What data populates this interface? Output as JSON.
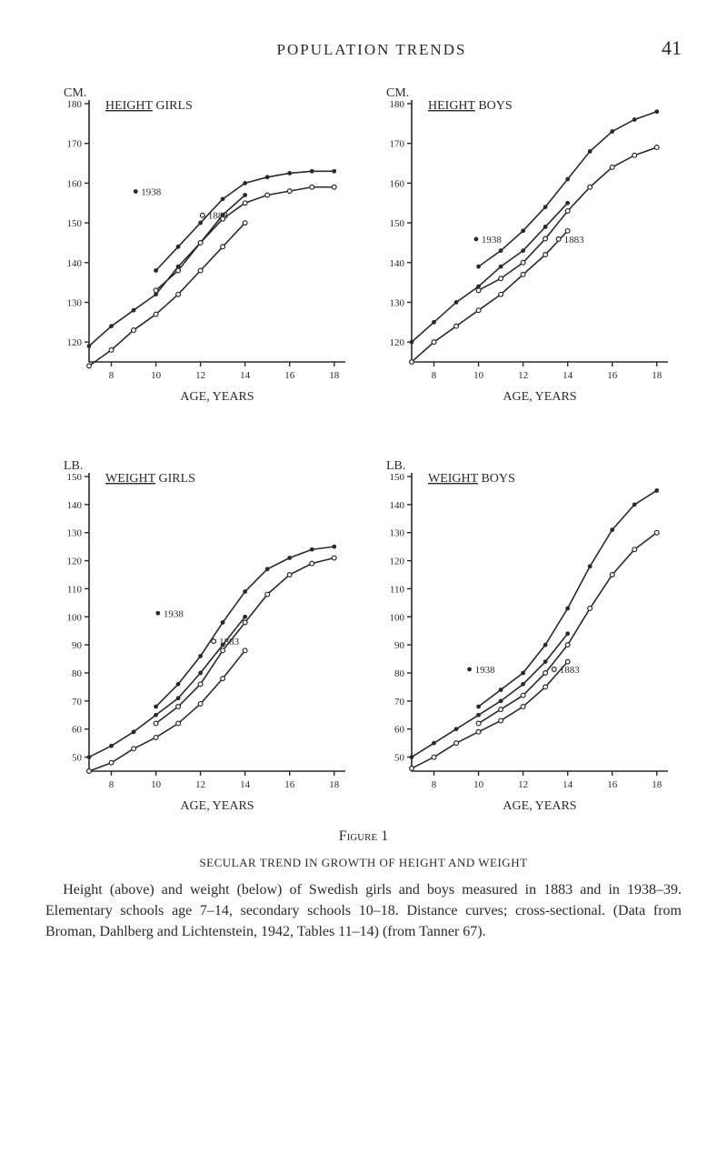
{
  "header": {
    "running_title": "POPULATION TRENDS",
    "page_number": "41"
  },
  "figure_label": "Figure 1",
  "caption": {
    "title": "SECULAR TREND IN GROWTH OF HEIGHT AND WEIGHT",
    "body": "Height (above) and weight (below) of Swedish girls and boys measured in 1883 and in 1938–39. Elementary schools age 7–14, secondary schools 10–18. Distance curves; cross-sectional. (Data from Broman, Dahlberg and Lichtenstein, 1942, Tables 11–14) (from Tanner 67)."
  },
  "charts": {
    "height_girls": {
      "type": "line",
      "unit_label": "CM.",
      "title": "HEIGHT  GIRLS",
      "x_label": "AGE, YEARS",
      "x_ticks": [
        8,
        10,
        12,
        14,
        16,
        18
      ],
      "y_ticks": [
        120,
        130,
        140,
        150,
        160,
        170,
        180
      ],
      "xlim": [
        7,
        18.5
      ],
      "ylim": [
        115,
        180
      ],
      "series": {
        "elem_1938": {
          "label": "1938",
          "label_pos": {
            "x": 9.5,
            "y": 157
          },
          "points": [
            [
              7,
              119
            ],
            [
              8,
              124
            ],
            [
              9,
              128
            ],
            [
              10,
              132
            ],
            [
              11,
              139
            ],
            [
              12,
              145
            ],
            [
              13,
              152
            ],
            [
              14,
              157
            ]
          ],
          "marker": "dot",
          "color": "#2a2a2a"
        },
        "elem_1883": {
          "label": "1883",
          "label_pos": {
            "x": 12.5,
            "y": 151
          },
          "label_marker": "circle",
          "points": [
            [
              7,
              114
            ],
            [
              8,
              118
            ],
            [
              9,
              123
            ],
            [
              10,
              127
            ],
            [
              11,
              132
            ],
            [
              12,
              138
            ],
            [
              13,
              144
            ],
            [
              14,
              150
            ]
          ],
          "marker": "circle",
          "color": "#2a2a2a"
        },
        "sec_1938": {
          "points": [
            [
              10,
              138
            ],
            [
              11,
              144
            ],
            [
              12,
              150
            ],
            [
              13,
              156
            ],
            [
              14,
              160
            ],
            [
              15,
              161.5
            ],
            [
              16,
              162.5
            ],
            [
              17,
              163
            ],
            [
              18,
              163
            ]
          ],
          "marker": "dot",
          "color": "#2a2a2a"
        },
        "sec_1883": {
          "points": [
            [
              10,
              133
            ],
            [
              11,
              138
            ],
            [
              12,
              145
            ],
            [
              13,
              151
            ],
            [
              14,
              155
            ],
            [
              15,
              157
            ],
            [
              16,
              158
            ],
            [
              17,
              159
            ],
            [
              18,
              159
            ]
          ],
          "marker": "circle",
          "color": "#2a2a2a"
        }
      }
    },
    "height_boys": {
      "type": "line",
      "unit_label": "CM.",
      "title": "HEIGHT  BOYS",
      "x_label": "AGE, YEARS",
      "x_ticks": [
        8,
        10,
        12,
        14,
        16,
        18
      ],
      "y_ticks": [
        120,
        130,
        140,
        150,
        160,
        170,
        180
      ],
      "xlim": [
        7,
        18.5
      ],
      "ylim": [
        115,
        180
      ],
      "series": {
        "elem_1938": {
          "label": "1938",
          "label_pos": {
            "x": 10.3,
            "y": 145
          },
          "points": [
            [
              7,
              120
            ],
            [
              8,
              125
            ],
            [
              9,
              130
            ],
            [
              10,
              134
            ],
            [
              11,
              139
            ],
            [
              12,
              143
            ],
            [
              13,
              149
            ],
            [
              14,
              155
            ]
          ],
          "marker": "dot",
          "color": "#2a2a2a"
        },
        "elem_1883": {
          "label": "1883",
          "label_pos": {
            "x": 14,
            "y": 145
          },
          "label_marker": "circle",
          "points": [
            [
              7,
              115
            ],
            [
              8,
              120
            ],
            [
              9,
              124
            ],
            [
              10,
              128
            ],
            [
              11,
              132
            ],
            [
              12,
              137
            ],
            [
              13,
              142
            ],
            [
              14,
              148
            ]
          ],
          "marker": "circle",
          "color": "#2a2a2a"
        },
        "sec_1938": {
          "points": [
            [
              10,
              139
            ],
            [
              11,
              143
            ],
            [
              12,
              148
            ],
            [
              13,
              154
            ],
            [
              14,
              161
            ],
            [
              15,
              168
            ],
            [
              16,
              173
            ],
            [
              17,
              176
            ],
            [
              18,
              178
            ]
          ],
          "marker": "dot",
          "color": "#2a2a2a"
        },
        "sec_1883": {
          "points": [
            [
              10,
              133
            ],
            [
              11,
              136
            ],
            [
              12,
              140
            ],
            [
              13,
              146
            ],
            [
              14,
              153
            ],
            [
              15,
              159
            ],
            [
              16,
              164
            ],
            [
              17,
              167
            ],
            [
              18,
              169
            ]
          ],
          "marker": "circle",
          "color": "#2a2a2a"
        }
      }
    },
    "weight_girls": {
      "type": "line",
      "unit_label": "LB.",
      "title": "WEIGHT  GIRLS",
      "x_label": "AGE, YEARS",
      "x_ticks": [
        8,
        10,
        12,
        14,
        16,
        18
      ],
      "y_ticks": [
        50,
        60,
        70,
        80,
        90,
        100,
        110,
        120,
        130,
        140,
        150
      ],
      "xlim": [
        7,
        18.5
      ],
      "ylim": [
        45,
        150
      ],
      "series": {
        "elem_1938": {
          "label": "1938",
          "label_pos": {
            "x": 10.5,
            "y": 100
          },
          "points": [
            [
              7,
              50
            ],
            [
              8,
              54
            ],
            [
              9,
              59
            ],
            [
              10,
              65
            ],
            [
              11,
              71
            ],
            [
              12,
              80
            ],
            [
              13,
              90
            ],
            [
              14,
              100
            ]
          ],
          "marker": "dot",
          "color": "#2a2a2a"
        },
        "elem_1883": {
          "label": "1883",
          "label_pos": {
            "x": 13,
            "y": 90
          },
          "label_marker": "circle",
          "points": [
            [
              7,
              45
            ],
            [
              8,
              48
            ],
            [
              9,
              53
            ],
            [
              10,
              57
            ],
            [
              11,
              62
            ],
            [
              12,
              69
            ],
            [
              13,
              78
            ],
            [
              14,
              88
            ]
          ],
          "marker": "circle",
          "color": "#2a2a2a"
        },
        "sec_1938": {
          "points": [
            [
              10,
              68
            ],
            [
              11,
              76
            ],
            [
              12,
              86
            ],
            [
              13,
              98
            ],
            [
              14,
              109
            ],
            [
              15,
              117
            ],
            [
              16,
              121
            ],
            [
              17,
              124
            ],
            [
              18,
              125
            ]
          ],
          "marker": "dot",
          "color": "#2a2a2a"
        },
        "sec_1883": {
          "points": [
            [
              10,
              62
            ],
            [
              11,
              68
            ],
            [
              12,
              76
            ],
            [
              13,
              88
            ],
            [
              14,
              98
            ],
            [
              15,
              108
            ],
            [
              16,
              115
            ],
            [
              17,
              119
            ],
            [
              18,
              121
            ]
          ],
          "marker": "circle",
          "color": "#2a2a2a"
        }
      }
    },
    "weight_boys": {
      "type": "line",
      "unit_label": "LB.",
      "title": "WEIGHT  BOYS",
      "x_label": "AGE, YEARS",
      "x_ticks": [
        8,
        10,
        12,
        14,
        16,
        18
      ],
      "y_ticks": [
        50,
        60,
        70,
        80,
        90,
        100,
        110,
        120,
        130,
        140,
        150
      ],
      "xlim": [
        7,
        18.5
      ],
      "ylim": [
        45,
        150
      ],
      "series": {
        "elem_1938": {
          "label": "1938",
          "label_pos": {
            "x": 10,
            "y": 80
          },
          "points": [
            [
              7,
              50
            ],
            [
              8,
              55
            ],
            [
              9,
              60
            ],
            [
              10,
              65
            ],
            [
              11,
              70
            ],
            [
              12,
              76
            ],
            [
              13,
              84
            ],
            [
              14,
              94
            ]
          ],
          "marker": "dot",
          "color": "#2a2a2a"
        },
        "elem_1883": {
          "label": "1883",
          "label_pos": {
            "x": 13.8,
            "y": 80
          },
          "label_marker": "circle",
          "points": [
            [
              7,
              46
            ],
            [
              8,
              50
            ],
            [
              9,
              55
            ],
            [
              10,
              59
            ],
            [
              11,
              63
            ],
            [
              12,
              68
            ],
            [
              13,
              75
            ],
            [
              14,
              84
            ]
          ],
          "marker": "circle",
          "color": "#2a2a2a"
        },
        "sec_1938": {
          "points": [
            [
              10,
              68
            ],
            [
              11,
              74
            ],
            [
              12,
              80
            ],
            [
              13,
              90
            ],
            [
              14,
              103
            ],
            [
              15,
              118
            ],
            [
              16,
              131
            ],
            [
              17,
              140
            ],
            [
              18,
              145
            ]
          ],
          "marker": "dot",
          "color": "#2a2a2a"
        },
        "sec_1883": {
          "points": [
            [
              10,
              62
            ],
            [
              11,
              67
            ],
            [
              12,
              72
            ],
            [
              13,
              80
            ],
            [
              14,
              90
            ],
            [
              15,
              103
            ],
            [
              16,
              115
            ],
            [
              17,
              124
            ],
            [
              18,
              130
            ]
          ],
          "marker": "circle",
          "color": "#2a2a2a"
        }
      }
    }
  },
  "style": {
    "axis_color": "#2a2a2a",
    "text_color": "#2a2a2a",
    "background": "#ffffff",
    "line_width": 1.6,
    "marker_radius": 2.4,
    "font_family": "serif",
    "axis_font_size": 11,
    "title_font_size": 14,
    "label_font_size": 14
  }
}
